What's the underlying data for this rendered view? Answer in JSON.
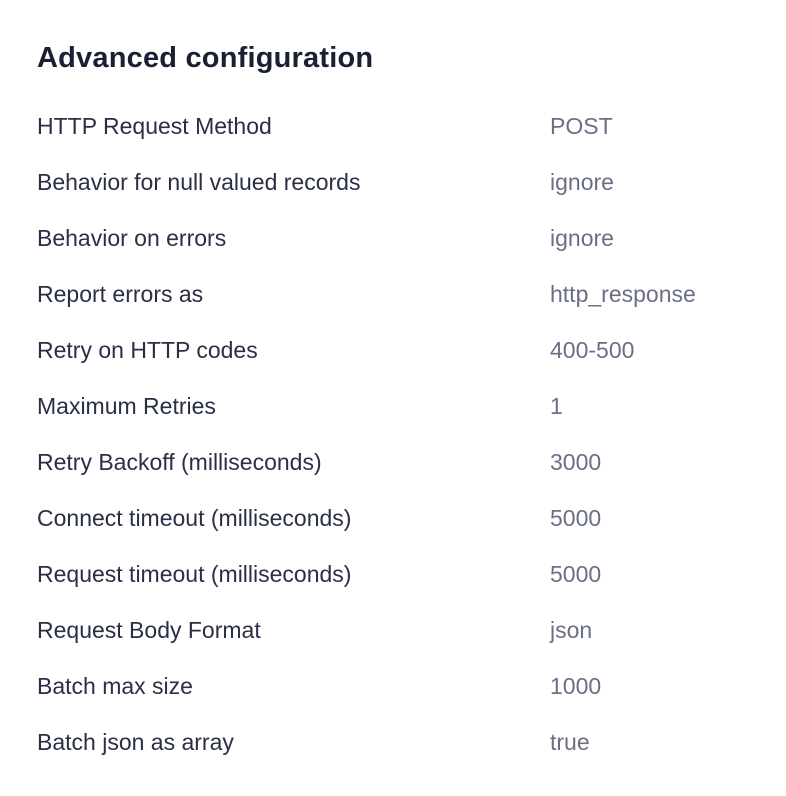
{
  "page": {
    "title": "Advanced configuration"
  },
  "config": {
    "rows": [
      {
        "label": "HTTP Request Method",
        "value": "POST"
      },
      {
        "label": "Behavior for null valued records",
        "value": "ignore"
      },
      {
        "label": "Behavior on errors",
        "value": "ignore"
      },
      {
        "label": "Report errors as",
        "value": "http_response"
      },
      {
        "label": "Retry on HTTP codes",
        "value": "400-500"
      },
      {
        "label": "Maximum Retries",
        "value": "1"
      },
      {
        "label": "Retry Backoff (milliseconds)",
        "value": "3000"
      },
      {
        "label": "Connect timeout (milliseconds)",
        "value": "5000"
      },
      {
        "label": "Request timeout (milliseconds)",
        "value": "5000"
      },
      {
        "label": "Request Body Format",
        "value": "json"
      },
      {
        "label": "Batch max size",
        "value": "1000"
      },
      {
        "label": "Batch json as array",
        "value": "true"
      }
    ]
  },
  "colors": {
    "background": "#ffffff",
    "title": "#1a1f33",
    "label": "#2a2f45",
    "value": "#6b6f85"
  }
}
